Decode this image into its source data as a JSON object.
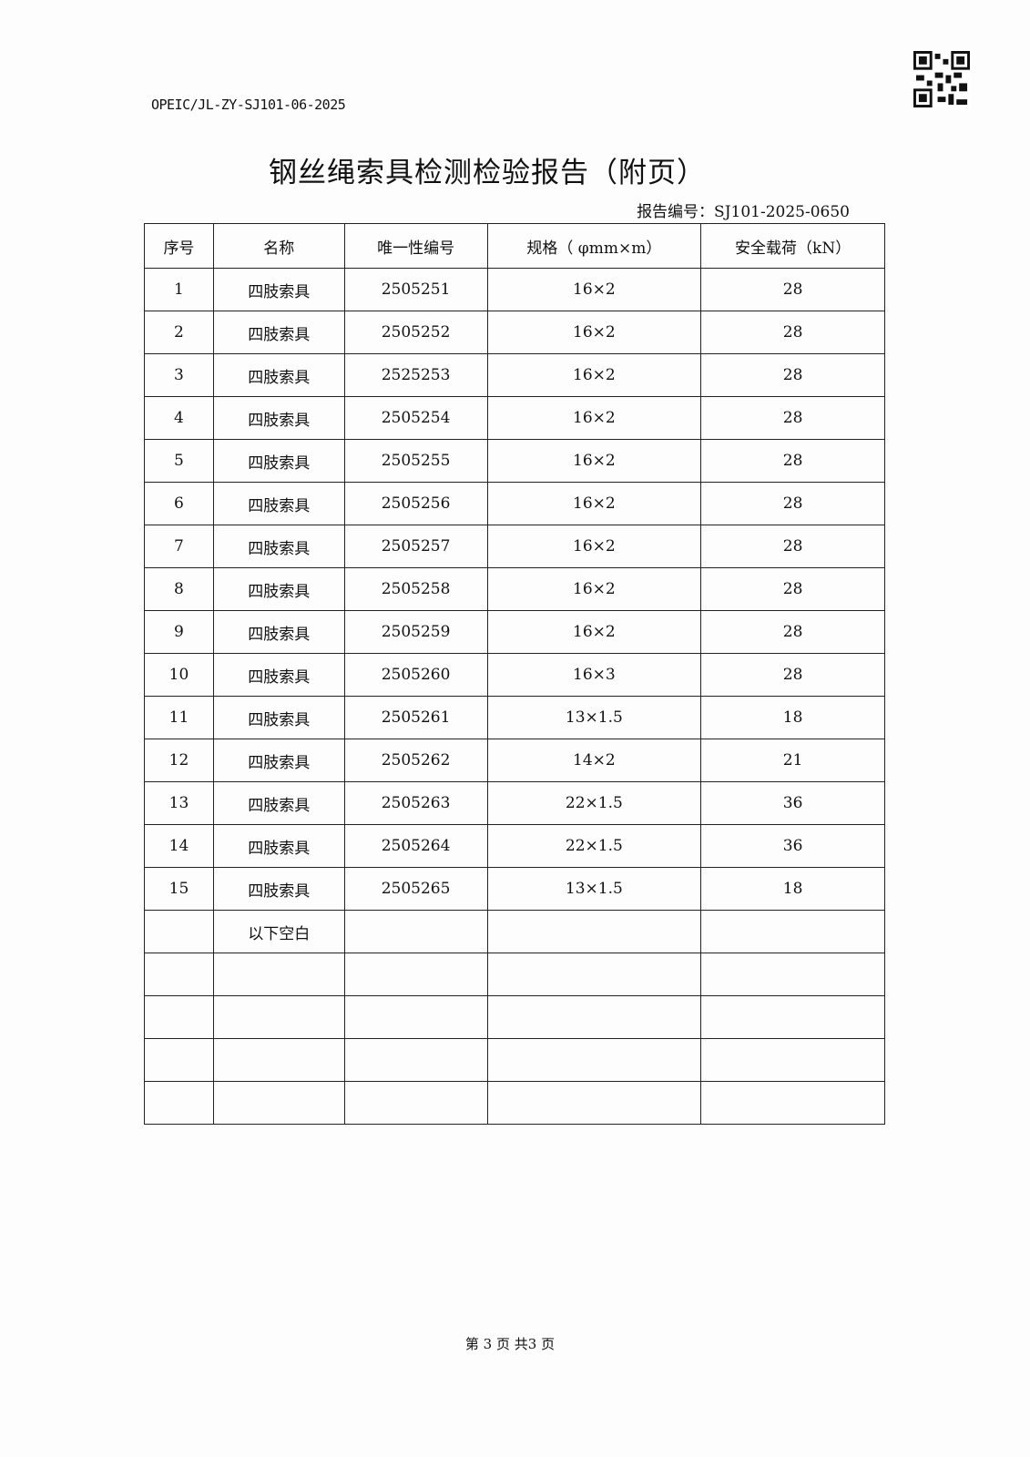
{
  "header": {
    "doc_code": "OPEIC/JL-ZY-SJ101-06-2025",
    "title": "钢丝绳索具检测检验报告（附页）",
    "report_no": "报告编号：SJ101-2025-0650"
  },
  "table": {
    "columns": [
      "序号",
      "名称",
      "唯一性编号",
      "规格（ φmm×m）",
      "安全载荷（kN）"
    ],
    "rows": [
      [
        "1",
        "四肢索具",
        "2505251",
        "16×2",
        "28"
      ],
      [
        "2",
        "四肢索具",
        "2505252",
        "16×2",
        "28"
      ],
      [
        "3",
        "四肢索具",
        "2525253",
        "16×2",
        "28"
      ],
      [
        "4",
        "四肢索具",
        "2505254",
        "16×2",
        "28"
      ],
      [
        "5",
        "四肢索具",
        "2505255",
        "16×2",
        "28"
      ],
      [
        "6",
        "四肢索具",
        "2505256",
        "16×2",
        "28"
      ],
      [
        "7",
        "四肢索具",
        "2505257",
        "16×2",
        "28"
      ],
      [
        "8",
        "四肢索具",
        "2505258",
        "16×2",
        "28"
      ],
      [
        "9",
        "四肢索具",
        "2505259",
        "16×2",
        "28"
      ],
      [
        "10",
        "四肢索具",
        "2505260",
        "16×3",
        "28"
      ],
      [
        "11",
        "四肢索具",
        "2505261",
        "13×1.5",
        "18"
      ],
      [
        "12",
        "四肢索具",
        "2505262",
        "14×2",
        "21"
      ],
      [
        "13",
        "四肢索具",
        "2505263",
        "22×1.5",
        "36"
      ],
      [
        "14",
        "四肢索具",
        "2505264",
        "22×1.5",
        "36"
      ],
      [
        "15",
        "四肢索具",
        "2505265",
        "13×1.5",
        "18"
      ],
      [
        "",
        "以下空白",
        "",
        "",
        ""
      ],
      [
        "",
        "",
        "",
        "",
        ""
      ],
      [
        "",
        "",
        "",
        "",
        ""
      ],
      [
        "",
        "",
        "",
        "",
        ""
      ],
      [
        "",
        "",
        "",
        "",
        ""
      ]
    ]
  },
  "footer": {
    "page": "第 3 页 共3 页"
  },
  "icons": {
    "qr": "qr-code-icon"
  }
}
